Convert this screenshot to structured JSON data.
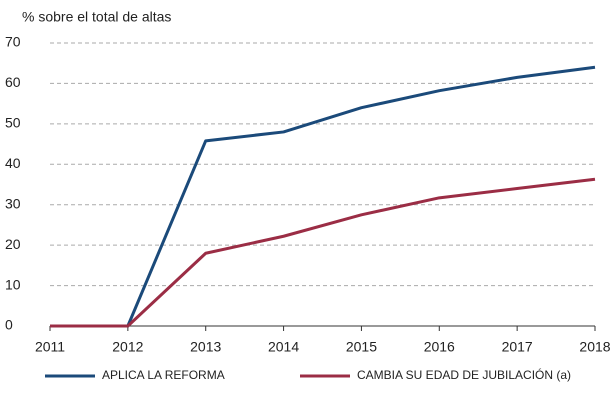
{
  "chart_data": {
    "type": "line",
    "y_label": "% sobre el total de altas",
    "x": [
      2011,
      2012,
      2013,
      2014,
      2015,
      2016,
      2017,
      2018
    ],
    "series": [
      {
        "name": "APLICA LA REFORMA",
        "color": "#1b4a7a",
        "values": [
          0,
          0,
          45.8,
          48,
          54,
          58.2,
          61.5,
          64
        ]
      },
      {
        "name": "CAMBIA SU EDAD DE JUBILACIÓN (a)",
        "color": "#9b2d45",
        "values": [
          0,
          0,
          18,
          22.2,
          27.5,
          31.7,
          34,
          36.3
        ]
      }
    ],
    "xlim": [
      2011,
      2018
    ],
    "xticks": [
      2011,
      2012,
      2013,
      2014,
      2015,
      2016,
      2017,
      2018
    ],
    "ylim": [
      0,
      70
    ],
    "yticks": [
      0,
      10,
      20,
      30,
      40,
      50,
      60,
      70
    ],
    "grid": true,
    "legend": "bottom"
  }
}
